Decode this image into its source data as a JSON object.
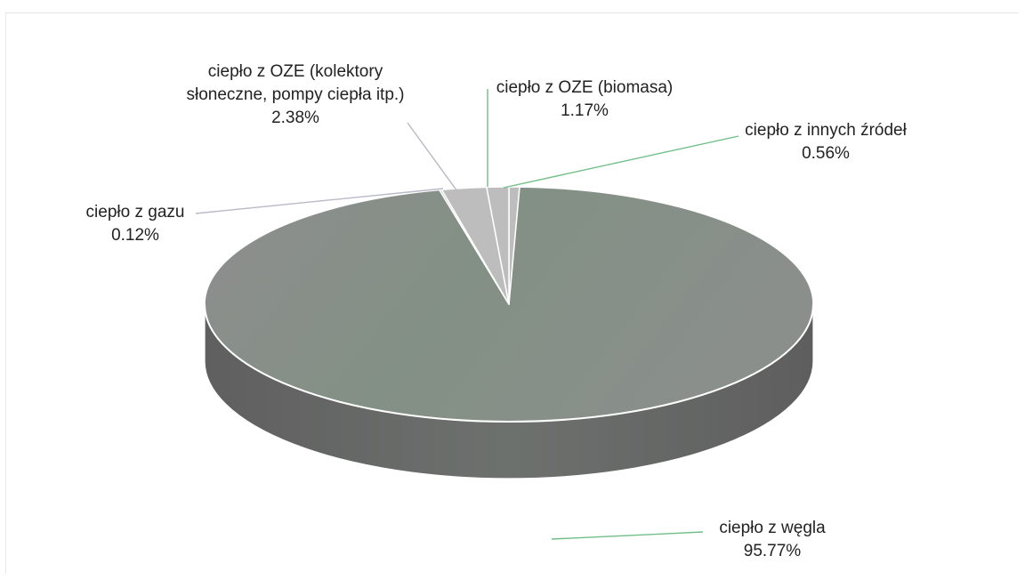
{
  "chart_data": {
    "type": "pie",
    "style": "3d",
    "title": "",
    "slices": [
      {
        "label": "ciepło z węgla",
        "value_text": "95.77%",
        "value": 95.77
      },
      {
        "label": "ciepło z gazu",
        "value_text": "0.12%",
        "value": 0.12
      },
      {
        "label_lines": [
          "ciepło z OZE (kolektory",
          "słoneczne, pompy ciepła itp.)"
        ],
        "value_text": "2.38%",
        "value": 2.38
      },
      {
        "label": "ciepło z OZE (biomasa)",
        "value_text": "1.17%",
        "value": 1.17
      },
      {
        "label": "ciepło z innych źródeł",
        "value_text": "0.56%",
        "value": 0.56
      }
    ],
    "colors": {
      "top": "#8b8b8b",
      "top_tint": "#7e9786",
      "side": "#6a6a6a",
      "small_slice": "#bdbdbd",
      "edge": "#ffffff",
      "leader_gray": "#b9b9c7",
      "leader_green": "#6fbf86"
    }
  }
}
